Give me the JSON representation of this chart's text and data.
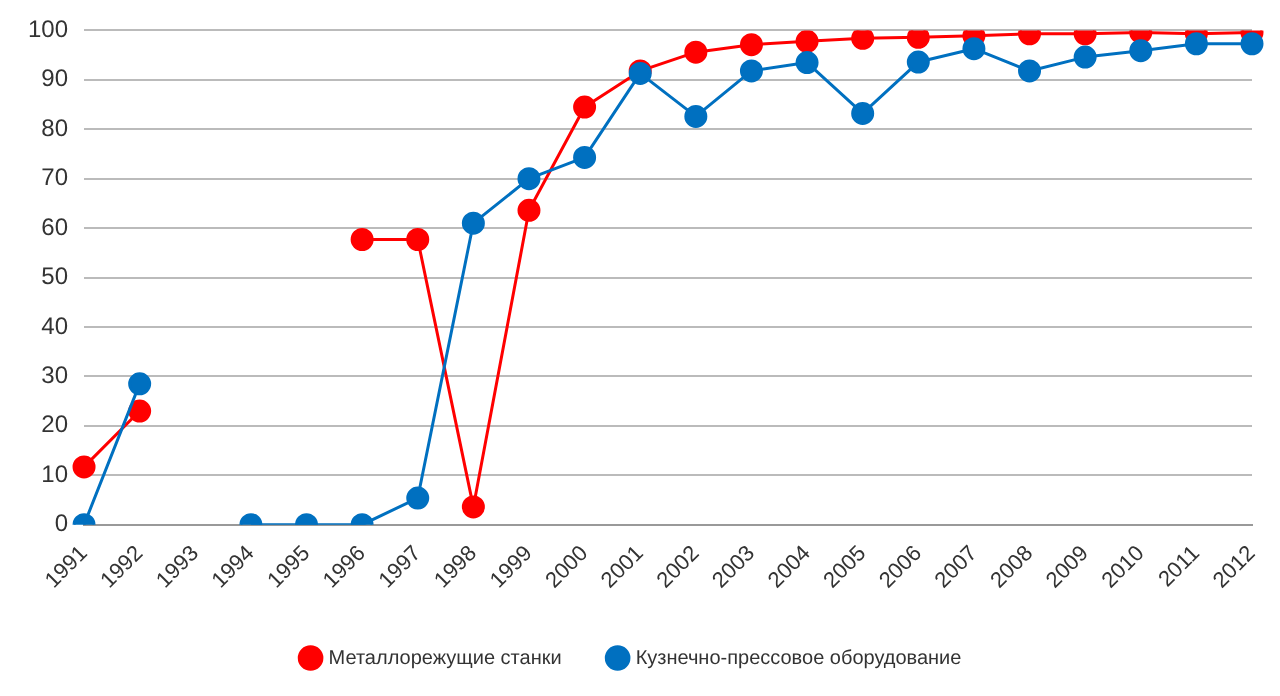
{
  "chart_data": {
    "type": "line",
    "categories": [
      "1991",
      "1992",
      "1993",
      "1994",
      "1995",
      "1996",
      "1997",
      "1998",
      "1999",
      "2000",
      "2001",
      "2002",
      "2003",
      "2004",
      "2005",
      "2006",
      "2007",
      "2008",
      "2009",
      "2010",
      "2011",
      "2012"
    ],
    "series": [
      {
        "name": "Металлорежущие станки",
        "color": "#ff0000",
        "values": [
          11.7,
          23,
          null,
          null,
          null,
          57.7,
          57.7,
          3.6,
          63.6,
          84.5,
          91.8,
          95.6,
          97.1,
          97.8,
          98.4,
          98.6,
          98.9,
          99.3,
          99.3,
          99.6,
          99.3,
          99.6
        ]
      },
      {
        "name": "Кузнечно-прессовое оборудование",
        "color": "#0070c0",
        "values": [
          0,
          28.5,
          null,
          0,
          0,
          0,
          5.4,
          61,
          70,
          74.3,
          91.3,
          82.6,
          91.8,
          93.5,
          83.2,
          93.6,
          96.3,
          91.8,
          94.6,
          95.9,
          97.3,
          97.3
        ]
      }
    ],
    "ylim": [
      0,
      100
    ],
    "yticks": [
      0,
      10,
      20,
      30,
      40,
      50,
      60,
      70,
      80,
      90,
      100
    ],
    "grid": "y",
    "legend": "bottom",
    "marker": "circle",
    "line_style": "solid"
  }
}
